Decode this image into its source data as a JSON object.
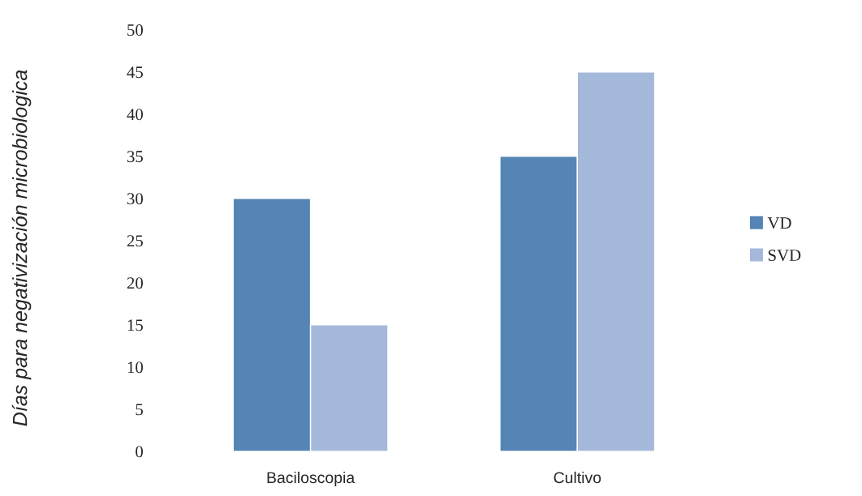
{
  "chart_data": {
    "type": "bar",
    "ylabel": "Días para negativización microbiologica",
    "categories": [
      "Baciloscopia",
      "Cultivo"
    ],
    "series": [
      {
        "name": "VD",
        "color": "#5585b5",
        "values": [
          30,
          35
        ]
      },
      {
        "name": "SVD",
        "color": "#a4b8d9",
        "values": [
          15,
          45
        ]
      }
    ],
    "ylim": [
      0,
      50
    ],
    "yticks": [
      0,
      5,
      10,
      15,
      20,
      25,
      30,
      35,
      40,
      45,
      50
    ],
    "grid": false,
    "legend": "right"
  }
}
